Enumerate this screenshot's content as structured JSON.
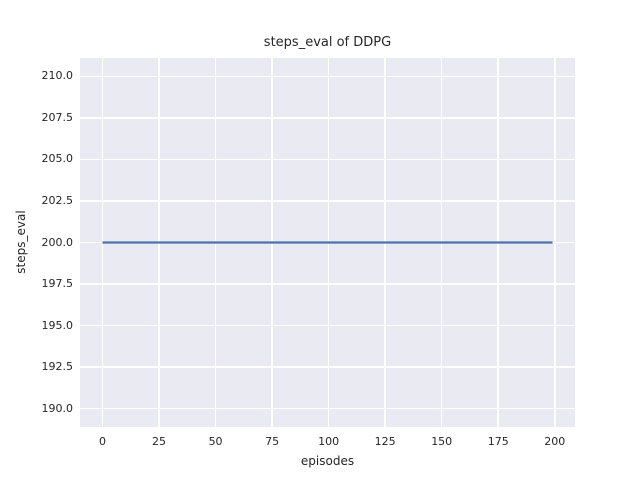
{
  "chart_data": {
    "type": "line",
    "title": "steps_eval of DDPG",
    "xlabel": "episodes",
    "ylabel": "steps_eval",
    "xlim": [
      -9.95,
      208.95
    ],
    "ylim": [
      188.9,
      211.1
    ],
    "xticks": [
      0,
      25,
      50,
      75,
      100,
      125,
      150,
      175,
      200
    ],
    "yticks": [
      190.0,
      192.5,
      195.0,
      197.5,
      200.0,
      202.5,
      205.0,
      207.5,
      210.0
    ],
    "grid": true,
    "legend": "none",
    "colors": {
      "plot_background": "#eaeaf2",
      "grid": "#ffffff",
      "line": "#4c72b0",
      "text": "#262626",
      "figure_background": "#ffffff"
    },
    "series": [
      {
        "name": "steps_eval",
        "color": "#4c72b0",
        "x": [
          0,
          199
        ],
        "y": [
          200,
          200
        ]
      }
    ]
  }
}
